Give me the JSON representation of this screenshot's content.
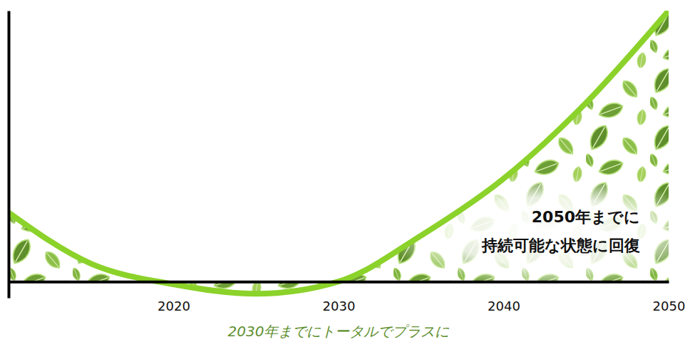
{
  "chart_data": {
    "type": "line",
    "x": [
      2010,
      2015,
      2020,
      2025,
      2030,
      2035,
      2040,
      2045,
      2050
    ],
    "values": [
      25.5,
      6.6,
      -1,
      -4.5,
      0,
      17,
      38,
      66,
      100
    ],
    "color": "#8bd22a",
    "xlim": [
      2010,
      2050
    ],
    "xticks": [
      2020,
      2030,
      2040,
      2050
    ],
    "ylim": [
      -6,
      100
    ],
    "yticks": [
      0
    ],
    "tick_labels": "x",
    "annotation": [
      "2050年までに",
      "持続可能な状態に回復"
    ],
    "x_label": "2030年までにトータルでプラスに"
  }
}
